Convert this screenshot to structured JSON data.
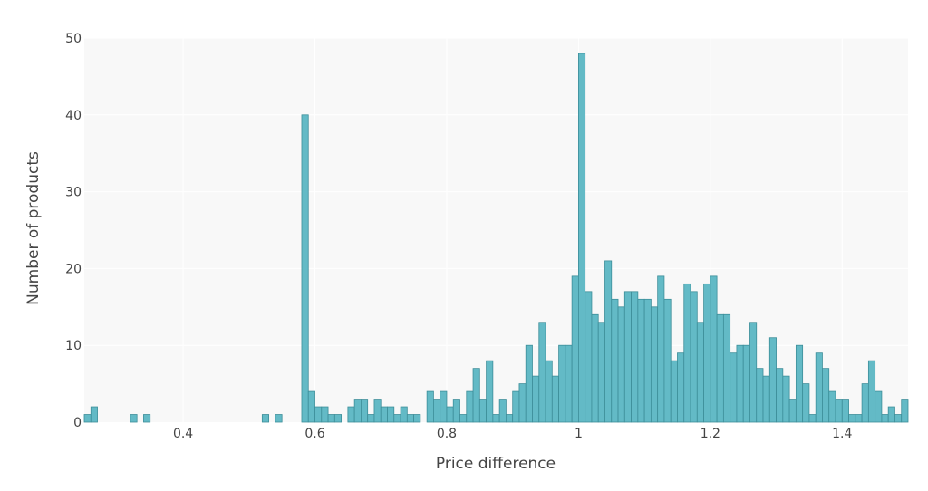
{
  "chart_data": {
    "type": "bar",
    "subtype": "histogram",
    "xlabel": "Price difference",
    "ylabel": "Number of products",
    "xlim": [
      0.25,
      1.5
    ],
    "ylim": [
      0,
      50
    ],
    "bin_width": 0.01,
    "grid": true,
    "colors": {
      "bar_fill": "#63bac6",
      "bar_stroke": "#3d8e99",
      "plot_bg": "#f8f8f8",
      "grid": "#ffffff"
    },
    "x_ticks": [
      {
        "value": 0.4,
        "label": "0.4"
      },
      {
        "value": 0.6,
        "label": "0.6"
      },
      {
        "value": 0.8,
        "label": "0.8"
      },
      {
        "value": 1.0,
        "label": "1"
      },
      {
        "value": 1.2,
        "label": "1.2"
      },
      {
        "value": 1.4,
        "label": "1.4"
      }
    ],
    "y_ticks": [
      {
        "value": 0,
        "label": "0"
      },
      {
        "value": 10,
        "label": "10"
      },
      {
        "value": 20,
        "label": "20"
      },
      {
        "value": 30,
        "label": "30"
      },
      {
        "value": 40,
        "label": "40"
      },
      {
        "value": 50,
        "label": "50"
      }
    ],
    "bins": [
      {
        "x": 0.25,
        "count": 1
      },
      {
        "x": 0.26,
        "count": 2
      },
      {
        "x": 0.32,
        "count": 1
      },
      {
        "x": 0.34,
        "count": 1
      },
      {
        "x": 0.52,
        "count": 1
      },
      {
        "x": 0.54,
        "count": 1
      },
      {
        "x": 0.58,
        "count": 40
      },
      {
        "x": 0.59,
        "count": 4
      },
      {
        "x": 0.6,
        "count": 2
      },
      {
        "x": 0.61,
        "count": 2
      },
      {
        "x": 0.62,
        "count": 1
      },
      {
        "x": 0.63,
        "count": 1
      },
      {
        "x": 0.65,
        "count": 2
      },
      {
        "x": 0.66,
        "count": 3
      },
      {
        "x": 0.67,
        "count": 3
      },
      {
        "x": 0.68,
        "count": 1
      },
      {
        "x": 0.69,
        "count": 3
      },
      {
        "x": 0.7,
        "count": 2
      },
      {
        "x": 0.71,
        "count": 2
      },
      {
        "x": 0.72,
        "count": 1
      },
      {
        "x": 0.73,
        "count": 2
      },
      {
        "x": 0.74,
        "count": 1
      },
      {
        "x": 0.75,
        "count": 1
      },
      {
        "x": 0.77,
        "count": 4
      },
      {
        "x": 0.78,
        "count": 3
      },
      {
        "x": 0.79,
        "count": 4
      },
      {
        "x": 0.8,
        "count": 2
      },
      {
        "x": 0.81,
        "count": 3
      },
      {
        "x": 0.82,
        "count": 1
      },
      {
        "x": 0.83,
        "count": 4
      },
      {
        "x": 0.84,
        "count": 7
      },
      {
        "x": 0.85,
        "count": 3
      },
      {
        "x": 0.86,
        "count": 8
      },
      {
        "x": 0.87,
        "count": 1
      },
      {
        "x": 0.88,
        "count": 3
      },
      {
        "x": 0.89,
        "count": 1
      },
      {
        "x": 0.9,
        "count": 4
      },
      {
        "x": 0.91,
        "count": 5
      },
      {
        "x": 0.92,
        "count": 10
      },
      {
        "x": 0.93,
        "count": 6
      },
      {
        "x": 0.94,
        "count": 13
      },
      {
        "x": 0.95,
        "count": 8
      },
      {
        "x": 0.96,
        "count": 6
      },
      {
        "x": 0.97,
        "count": 10
      },
      {
        "x": 0.98,
        "count": 10
      },
      {
        "x": 0.99,
        "count": 19
      },
      {
        "x": 1.0,
        "count": 48
      },
      {
        "x": 1.01,
        "count": 17
      },
      {
        "x": 1.02,
        "count": 14
      },
      {
        "x": 1.03,
        "count": 13
      },
      {
        "x": 1.04,
        "count": 21
      },
      {
        "x": 1.05,
        "count": 16
      },
      {
        "x": 1.06,
        "count": 15
      },
      {
        "x": 1.07,
        "count": 17
      },
      {
        "x": 1.08,
        "count": 17
      },
      {
        "x": 1.09,
        "count": 16
      },
      {
        "x": 1.1,
        "count": 16
      },
      {
        "x": 1.11,
        "count": 15
      },
      {
        "x": 1.12,
        "count": 19
      },
      {
        "x": 1.13,
        "count": 16
      },
      {
        "x": 1.14,
        "count": 8
      },
      {
        "x": 1.15,
        "count": 9
      },
      {
        "x": 1.16,
        "count": 18
      },
      {
        "x": 1.17,
        "count": 17
      },
      {
        "x": 1.18,
        "count": 13
      },
      {
        "x": 1.19,
        "count": 18
      },
      {
        "x": 1.2,
        "count": 19
      },
      {
        "x": 1.21,
        "count": 14
      },
      {
        "x": 1.22,
        "count": 14
      },
      {
        "x": 1.23,
        "count": 9
      },
      {
        "x": 1.24,
        "count": 10
      },
      {
        "x": 1.25,
        "count": 10
      },
      {
        "x": 1.26,
        "count": 13
      },
      {
        "x": 1.27,
        "count": 7
      },
      {
        "x": 1.28,
        "count": 6
      },
      {
        "x": 1.29,
        "count": 11
      },
      {
        "x": 1.3,
        "count": 7
      },
      {
        "x": 1.31,
        "count": 6
      },
      {
        "x": 1.32,
        "count": 3
      },
      {
        "x": 1.33,
        "count": 10
      },
      {
        "x": 1.34,
        "count": 5
      },
      {
        "x": 1.35,
        "count": 1
      },
      {
        "x": 1.36,
        "count": 9
      },
      {
        "x": 1.37,
        "count": 7
      },
      {
        "x": 1.38,
        "count": 4
      },
      {
        "x": 1.39,
        "count": 3
      },
      {
        "x": 1.4,
        "count": 3
      },
      {
        "x": 1.41,
        "count": 1
      },
      {
        "x": 1.42,
        "count": 1
      },
      {
        "x": 1.43,
        "count": 5
      },
      {
        "x": 1.44,
        "count": 8
      },
      {
        "x": 1.45,
        "count": 4
      },
      {
        "x": 1.46,
        "count": 1
      },
      {
        "x": 1.47,
        "count": 2
      },
      {
        "x": 1.48,
        "count": 1
      },
      {
        "x": 1.49,
        "count": 3
      }
    ]
  }
}
